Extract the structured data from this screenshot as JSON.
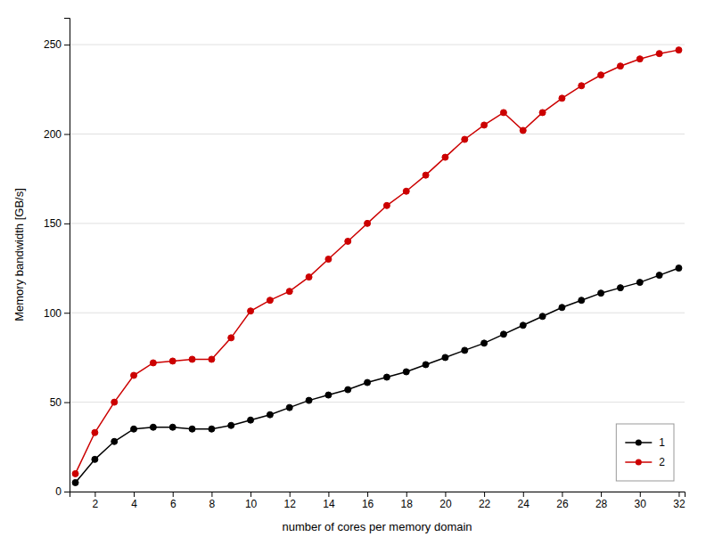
{
  "chart_data": {
    "type": "line",
    "xlabel": "number of cores per memory domain",
    "ylabel": "Memory bandwidth [GB/s]",
    "x": [
      1,
      2,
      3,
      4,
      5,
      6,
      7,
      8,
      9,
      10,
      11,
      12,
      13,
      14,
      15,
      16,
      17,
      18,
      19,
      20,
      21,
      22,
      23,
      24,
      25,
      26,
      27,
      28,
      29,
      30,
      31,
      32
    ],
    "series": [
      {
        "name": "1",
        "color": "#000000",
        "marker": "circle",
        "values": [
          5,
          18,
          28,
          35,
          36,
          36,
          35,
          35,
          37,
          40,
          43,
          47,
          51,
          54,
          57,
          61,
          64,
          67,
          71,
          75,
          79,
          83,
          88,
          93,
          98,
          103,
          107,
          111,
          114,
          117,
          121,
          125
        ]
      },
      {
        "name": "2",
        "color": "#cc0000",
        "marker": "circle",
        "values": [
          10,
          33,
          50,
          65,
          72,
          73,
          74,
          74,
          86,
          101,
          107,
          112,
          120,
          130,
          140,
          150,
          160,
          168,
          177,
          187,
          197,
          205,
          212,
          202,
          212,
          220,
          227,
          233,
          238,
          242,
          245,
          247
        ]
      }
    ],
    "xlim": [
      0.7,
      32.3
    ],
    "ylim": [
      0,
      265
    ],
    "xticks": [
      2,
      4,
      6,
      8,
      10,
      12,
      14,
      16,
      18,
      20,
      22,
      24,
      26,
      28,
      30,
      32
    ],
    "yticks": [
      0,
      50,
      100,
      150,
      200,
      250
    ],
    "grid": true,
    "legend": "lower right"
  }
}
